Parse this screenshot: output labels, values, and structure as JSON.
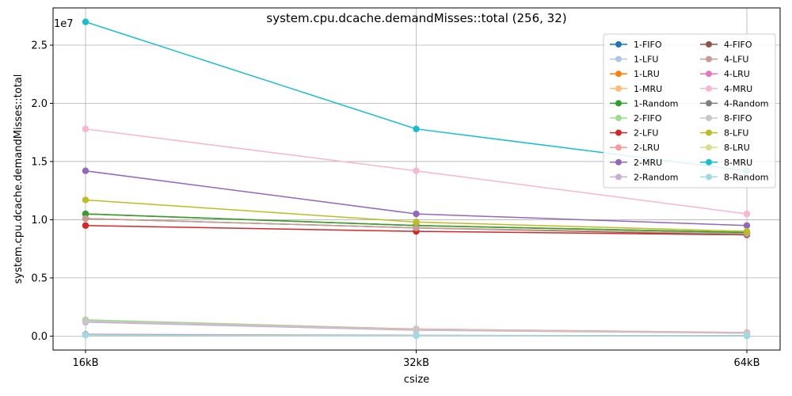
{
  "chart_data": {
    "type": "line",
    "title": "system.cpu.dcache.demandMisses::total (256, 32)",
    "xlabel": "csize",
    "ylabel": "system.cpu.dcache.demandMisses::total",
    "y_scale_label": "1e7",
    "categories": [
      "16kB",
      "32kB",
      "64kB"
    ],
    "ylim": [
      -1200000,
      28200000
    ],
    "yticks": [
      0,
      5000000,
      10000000,
      15000000,
      20000000,
      25000000
    ],
    "ytick_labels": [
      "0.0",
      "0.5",
      "1.0",
      "1.5",
      "2.0",
      "2.5"
    ],
    "grid": true,
    "legend_position": "top-right",
    "legend_columns": 2,
    "series": [
      {
        "name": "1-FIFO",
        "color": "#1f77b4",
        "values": [
          10500000,
          9500000,
          8900000
        ]
      },
      {
        "name": "1-LFU",
        "color": "#aec7e8",
        "values": [
          10500000,
          9500000,
          8900000
        ]
      },
      {
        "name": "1-LRU",
        "color": "#ff7f0e",
        "values": [
          10500000,
          9500000,
          8900000
        ]
      },
      {
        "name": "1-MRU",
        "color": "#ffbb78",
        "values": [
          10500000,
          9500000,
          8900000
        ]
      },
      {
        "name": "1-Random",
        "color": "#2ca02c",
        "values": [
          10500000,
          9500000,
          8900000
        ]
      },
      {
        "name": "2-FIFO",
        "color": "#98df8a",
        "values": [
          1400000,
          600000,
          300000
        ]
      },
      {
        "name": "2-LFU",
        "color": "#d62728",
        "values": [
          9500000,
          9000000,
          8700000
        ]
      },
      {
        "name": "2-LRU",
        "color": "#ff9896",
        "values": [
          1300000,
          600000,
          300000
        ]
      },
      {
        "name": "2-MRU",
        "color": "#9467bd",
        "values": [
          14200000,
          10500000,
          9500000
        ]
      },
      {
        "name": "2-Random",
        "color": "#c5b0d5",
        "values": [
          1200000,
          500000,
          250000
        ]
      },
      {
        "name": "4-FIFO",
        "color": "#8c564b",
        "values": [
          10100000,
          9300000,
          8700000
        ]
      },
      {
        "name": "4-LFU",
        "color": "#c49c94",
        "values": [
          10100000,
          9300000,
          8800000
        ]
      },
      {
        "name": "4-LRU",
        "color": "#e377c2",
        "values": [
          150000,
          60000,
          30000
        ]
      },
      {
        "name": "4-MRU",
        "color": "#f7b6d2",
        "values": [
          17800000,
          14200000,
          10500000
        ]
      },
      {
        "name": "4-Random",
        "color": "#7f7f7f",
        "values": [
          120000,
          50000,
          25000
        ]
      },
      {
        "name": "8-FIFO",
        "color": "#c7c7c7",
        "values": [
          1300000,
          550000,
          250000
        ]
      },
      {
        "name": "8-LFU",
        "color": "#bcbd22",
        "values": [
          11700000,
          9800000,
          9000000
        ]
      },
      {
        "name": "8-LRU",
        "color": "#dbdb8d",
        "values": [
          100000,
          40000,
          20000
        ]
      },
      {
        "name": "8-MRU",
        "color": "#17becf",
        "values": [
          27000000,
          17800000,
          14200000
        ]
      },
      {
        "name": "8-Random",
        "color": "#9edae5",
        "values": [
          90000,
          30000,
          15000
        ]
      }
    ]
  }
}
